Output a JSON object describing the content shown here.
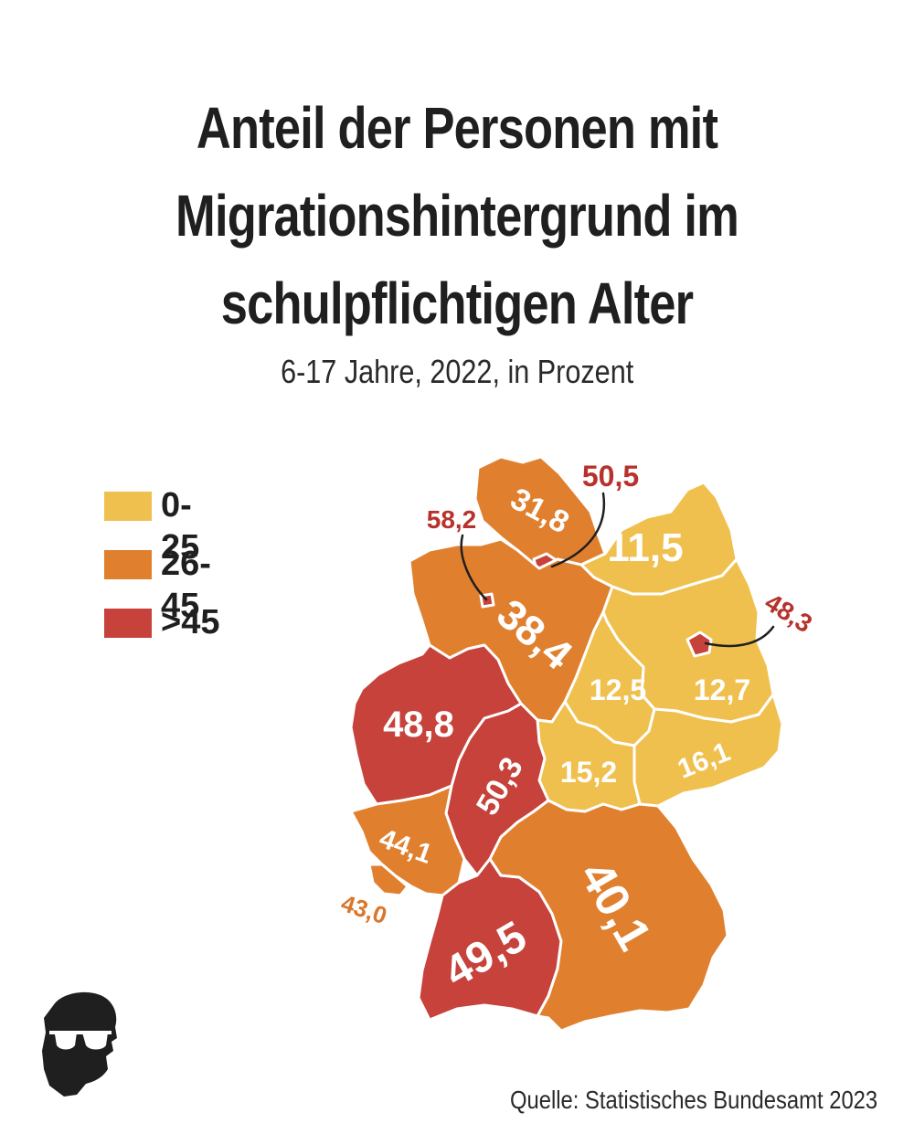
{
  "title_lines": [
    "Anteil der Personen mit",
    "Migrationshintergrund im",
    "schulpflichtigen Alter"
  ],
  "subtitle": "6-17 Jahre, 2022, in Prozent",
  "legend": [
    {
      "label": "0-25",
      "color": "#f0c04f"
    },
    {
      "label": "26-45",
      "color": "#e0802f"
    },
    {
      "label": ">45",
      "color": "#c6423b"
    }
  ],
  "states": [
    {
      "value": "31,8"
    },
    {
      "value": "38,4"
    },
    {
      "value": "11,5"
    },
    {
      "value": "12,5"
    },
    {
      "value": "12,7"
    },
    {
      "value": "48,8"
    },
    {
      "value": "50,3"
    },
    {
      "value": "15,2"
    },
    {
      "value": "16,1"
    },
    {
      "value": "44,1"
    },
    {
      "value": "49,5"
    },
    {
      "value": "40,1"
    }
  ],
  "city_states": [
    {
      "value": "50,5"
    },
    {
      "value": "58,2"
    },
    {
      "value": "48,3"
    },
    {
      "value": "43,0"
    }
  ],
  "source": "Quelle: Statistisches Bundesamt 2023",
  "colors": {
    "low": "#f0c04f",
    "mid": "#e0802f",
    "high": "#c6423b",
    "city_label_red": "#b8322d",
    "city_label_orange": "#d9772b"
  }
}
